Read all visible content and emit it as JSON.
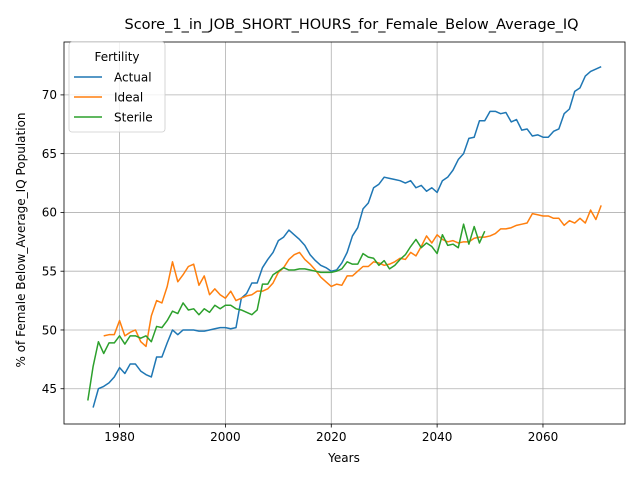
{
  "chart_data": {
    "type": "line",
    "title": "Score_1_in_JOB_SHORT_HOURS_for_Female_Below_Average_IQ",
    "xlabel": "Years",
    "ylabel": "% of Female Below_Average_IQ Population",
    "xlim": [
      1969.5,
      2075.5
    ],
    "ylim": [
      42,
      74.5
    ],
    "xticks": [
      1980,
      2000,
      2020,
      2040,
      2060
    ],
    "yticks": [
      45,
      50,
      55,
      60,
      65,
      70
    ],
    "grid": true,
    "legend": {
      "title": "Fertility",
      "placement": "top-left"
    },
    "series": [
      {
        "name": "Actual",
        "color": "#1f77b4",
        "points": [
          [
            1975,
            43.4
          ],
          [
            1976,
            45.0
          ],
          [
            1977,
            45.2
          ],
          [
            1978,
            45.5
          ],
          [
            1979,
            46.0
          ],
          [
            1980,
            46.8
          ],
          [
            1981,
            46.3
          ],
          [
            1982,
            47.1
          ],
          [
            1983,
            47.1
          ],
          [
            1984,
            46.5
          ],
          [
            1985,
            46.2
          ],
          [
            1986,
            46.0
          ],
          [
            1987,
            47.7
          ],
          [
            1988,
            47.7
          ],
          [
            1989,
            48.9
          ],
          [
            1990,
            50.0
          ],
          [
            1991,
            49.6
          ],
          [
            1992,
            50.0
          ],
          [
            1993,
            50.0
          ],
          [
            1994,
            50.0
          ],
          [
            1995,
            49.9
          ],
          [
            1996,
            49.9
          ],
          [
            1997,
            50.0
          ],
          [
            1998,
            50.1
          ],
          [
            1999,
            50.2
          ],
          [
            2000,
            50.2
          ],
          [
            2001,
            50.1
          ],
          [
            2002,
            50.2
          ],
          [
            2003,
            52.7
          ],
          [
            2004,
            53.1
          ],
          [
            2005,
            54.0
          ],
          [
            2006,
            54.0
          ],
          [
            2007,
            55.3
          ],
          [
            2008,
            56.0
          ],
          [
            2009,
            56.6
          ],
          [
            2010,
            57.6
          ],
          [
            2011,
            57.9
          ],
          [
            2012,
            58.5
          ],
          [
            2013,
            58.1
          ],
          [
            2014,
            57.7
          ],
          [
            2015,
            57.2
          ],
          [
            2016,
            56.4
          ],
          [
            2017,
            55.9
          ],
          [
            2018,
            55.5
          ],
          [
            2019,
            55.3
          ],
          [
            2020,
            55.0
          ],
          [
            2021,
            55.1
          ],
          [
            2022,
            55.7
          ],
          [
            2023,
            56.6
          ],
          [
            2024,
            58.0
          ],
          [
            2025,
            58.7
          ],
          [
            2026,
            60.3
          ],
          [
            2027,
            60.8
          ],
          [
            2028,
            62.1
          ],
          [
            2029,
            62.4
          ],
          [
            2030,
            63.0
          ],
          [
            2031,
            62.9
          ],
          [
            2032,
            62.8
          ],
          [
            2033,
            62.7
          ],
          [
            2034,
            62.5
          ],
          [
            2035,
            62.7
          ],
          [
            2036,
            62.1
          ],
          [
            2037,
            62.3
          ],
          [
            2038,
            61.8
          ],
          [
            2039,
            62.1
          ],
          [
            2040,
            61.7
          ],
          [
            2041,
            62.7
          ],
          [
            2042,
            63.0
          ],
          [
            2043,
            63.6
          ],
          [
            2044,
            64.5
          ],
          [
            2045,
            65.0
          ],
          [
            2046,
            66.3
          ],
          [
            2047,
            66.4
          ],
          [
            2048,
            67.8
          ],
          [
            2049,
            67.8
          ],
          [
            2050,
            68.6
          ],
          [
            2051,
            68.6
          ],
          [
            2052,
            68.4
          ],
          [
            2053,
            68.5
          ],
          [
            2054,
            67.7
          ],
          [
            2055,
            67.9
          ],
          [
            2056,
            67.0
          ],
          [
            2057,
            67.1
          ],
          [
            2058,
            66.5
          ],
          [
            2059,
            66.6
          ],
          [
            2060,
            66.4
          ],
          [
            2061,
            66.4
          ],
          [
            2062,
            66.9
          ],
          [
            2063,
            67.1
          ],
          [
            2064,
            68.4
          ],
          [
            2065,
            68.8
          ],
          [
            2066,
            70.3
          ],
          [
            2067,
            70.6
          ],
          [
            2068,
            71.6
          ],
          [
            2069,
            72.0
          ],
          [
            2070,
            72.2
          ],
          [
            2071,
            72.4
          ]
        ]
      },
      {
        "name": "Ideal",
        "color": "#ff7f0e",
        "points": [
          [
            1977,
            49.5
          ],
          [
            1978,
            49.6
          ],
          [
            1979,
            49.6
          ],
          [
            1980,
            50.8
          ],
          [
            1981,
            49.5
          ],
          [
            1982,
            49.8
          ],
          [
            1983,
            50.0
          ],
          [
            1984,
            49.0
          ],
          [
            1985,
            48.6
          ],
          [
            1986,
            51.2
          ],
          [
            1987,
            52.5
          ],
          [
            1988,
            52.3
          ],
          [
            1989,
            53.7
          ],
          [
            1990,
            55.8
          ],
          [
            1991,
            54.1
          ],
          [
            1992,
            54.7
          ],
          [
            1993,
            55.4
          ],
          [
            1994,
            55.6
          ],
          [
            1995,
            53.8
          ],
          [
            1996,
            54.6
          ],
          [
            1997,
            53.0
          ],
          [
            1998,
            53.5
          ],
          [
            1999,
            53.0
          ],
          [
            2000,
            52.7
          ],
          [
            2001,
            53.3
          ],
          [
            2002,
            52.5
          ],
          [
            2003,
            52.7
          ],
          [
            2004,
            52.9
          ],
          [
            2005,
            53.0
          ],
          [
            2006,
            53.3
          ],
          [
            2007,
            53.3
          ],
          [
            2008,
            53.5
          ],
          [
            2009,
            54.0
          ],
          [
            2010,
            54.9
          ],
          [
            2011,
            55.3
          ],
          [
            2012,
            56.0
          ],
          [
            2013,
            56.4
          ],
          [
            2014,
            56.6
          ],
          [
            2015,
            56.0
          ],
          [
            2016,
            55.6
          ],
          [
            2017,
            55.1
          ],
          [
            2018,
            54.5
          ],
          [
            2019,
            54.1
          ],
          [
            2020,
            53.7
          ],
          [
            2021,
            53.9
          ],
          [
            2022,
            53.8
          ],
          [
            2023,
            54.6
          ],
          [
            2024,
            54.6
          ],
          [
            2025,
            55.0
          ],
          [
            2026,
            55.4
          ],
          [
            2027,
            55.4
          ],
          [
            2028,
            55.8
          ],
          [
            2029,
            55.7
          ],
          [
            2030,
            55.5
          ],
          [
            2031,
            55.6
          ],
          [
            2032,
            55.8
          ],
          [
            2033,
            56.1
          ],
          [
            2034,
            56.0
          ],
          [
            2035,
            56.6
          ],
          [
            2036,
            56.3
          ],
          [
            2037,
            57.1
          ],
          [
            2038,
            58.0
          ],
          [
            2039,
            57.4
          ],
          [
            2040,
            58.1
          ],
          [
            2041,
            57.7
          ],
          [
            2042,
            57.5
          ],
          [
            2043,
            57.6
          ],
          [
            2044,
            57.4
          ],
          [
            2045,
            57.5
          ],
          [
            2046,
            57.5
          ],
          [
            2047,
            57.8
          ],
          [
            2048,
            57.9
          ],
          [
            2049,
            57.9
          ],
          [
            2050,
            58.0
          ],
          [
            2051,
            58.2
          ],
          [
            2052,
            58.6
          ],
          [
            2053,
            58.6
          ],
          [
            2054,
            58.7
          ],
          [
            2055,
            58.9
          ],
          [
            2056,
            59.0
          ],
          [
            2057,
            59.1
          ],
          [
            2058,
            59.9
          ],
          [
            2059,
            59.8
          ],
          [
            2060,
            59.7
          ],
          [
            2061,
            59.7
          ],
          [
            2062,
            59.5
          ],
          [
            2063,
            59.5
          ],
          [
            2064,
            58.9
          ],
          [
            2065,
            59.3
          ],
          [
            2066,
            59.1
          ],
          [
            2067,
            59.5
          ],
          [
            2068,
            59.1
          ],
          [
            2069,
            60.2
          ],
          [
            2070,
            59.4
          ],
          [
            2071,
            60.6
          ]
        ]
      },
      {
        "name": "Sterile",
        "color": "#2ca02c",
        "points": [
          [
            1974,
            44.0
          ],
          [
            1975,
            46.9
          ],
          [
            1976,
            49.0
          ],
          [
            1977,
            48.0
          ],
          [
            1978,
            48.9
          ],
          [
            1979,
            48.9
          ],
          [
            1980,
            49.5
          ],
          [
            1981,
            48.8
          ],
          [
            1982,
            49.5
          ],
          [
            1983,
            49.5
          ],
          [
            1984,
            49.3
          ],
          [
            1985,
            49.5
          ],
          [
            1986,
            49.0
          ],
          [
            1987,
            50.3
          ],
          [
            1988,
            50.2
          ],
          [
            1989,
            50.8
          ],
          [
            1990,
            51.6
          ],
          [
            1991,
            51.4
          ],
          [
            1992,
            52.3
          ],
          [
            1993,
            51.7
          ],
          [
            1994,
            51.8
          ],
          [
            1995,
            51.3
          ],
          [
            1996,
            51.8
          ],
          [
            1997,
            51.5
          ],
          [
            1998,
            52.1
          ],
          [
            1999,
            51.8
          ],
          [
            2000,
            52.1
          ],
          [
            2001,
            52.1
          ],
          [
            2002,
            51.8
          ],
          [
            2003,
            51.7
          ],
          [
            2004,
            51.5
          ],
          [
            2005,
            51.3
          ],
          [
            2006,
            51.7
          ],
          [
            2007,
            53.9
          ],
          [
            2008,
            53.9
          ],
          [
            2009,
            54.7
          ],
          [
            2010,
            55.0
          ],
          [
            2011,
            55.3
          ],
          [
            2012,
            55.1
          ],
          [
            2013,
            55.1
          ],
          [
            2014,
            55.2
          ],
          [
            2015,
            55.2
          ],
          [
            2016,
            55.1
          ],
          [
            2017,
            55.0
          ],
          [
            2018,
            54.9
          ],
          [
            2019,
            54.9
          ],
          [
            2020,
            54.9
          ],
          [
            2021,
            55.0
          ],
          [
            2022,
            55.2
          ],
          [
            2023,
            55.8
          ],
          [
            2024,
            55.6
          ],
          [
            2025,
            55.6
          ],
          [
            2026,
            56.5
          ],
          [
            2027,
            56.2
          ],
          [
            2028,
            56.1
          ],
          [
            2029,
            55.5
          ],
          [
            2030,
            55.9
          ],
          [
            2031,
            55.2
          ],
          [
            2032,
            55.5
          ],
          [
            2033,
            56.0
          ],
          [
            2034,
            56.4
          ],
          [
            2035,
            57.1
          ],
          [
            2036,
            57.7
          ],
          [
            2037,
            57.0
          ],
          [
            2038,
            57.4
          ],
          [
            2039,
            57.1
          ],
          [
            2040,
            56.5
          ],
          [
            2041,
            58.1
          ],
          [
            2042,
            57.2
          ],
          [
            2043,
            57.3
          ],
          [
            2044,
            57.0
          ],
          [
            2045,
            59.0
          ],
          [
            2046,
            57.3
          ],
          [
            2047,
            58.8
          ],
          [
            2048,
            57.4
          ],
          [
            2049,
            58.4
          ]
        ]
      }
    ]
  }
}
